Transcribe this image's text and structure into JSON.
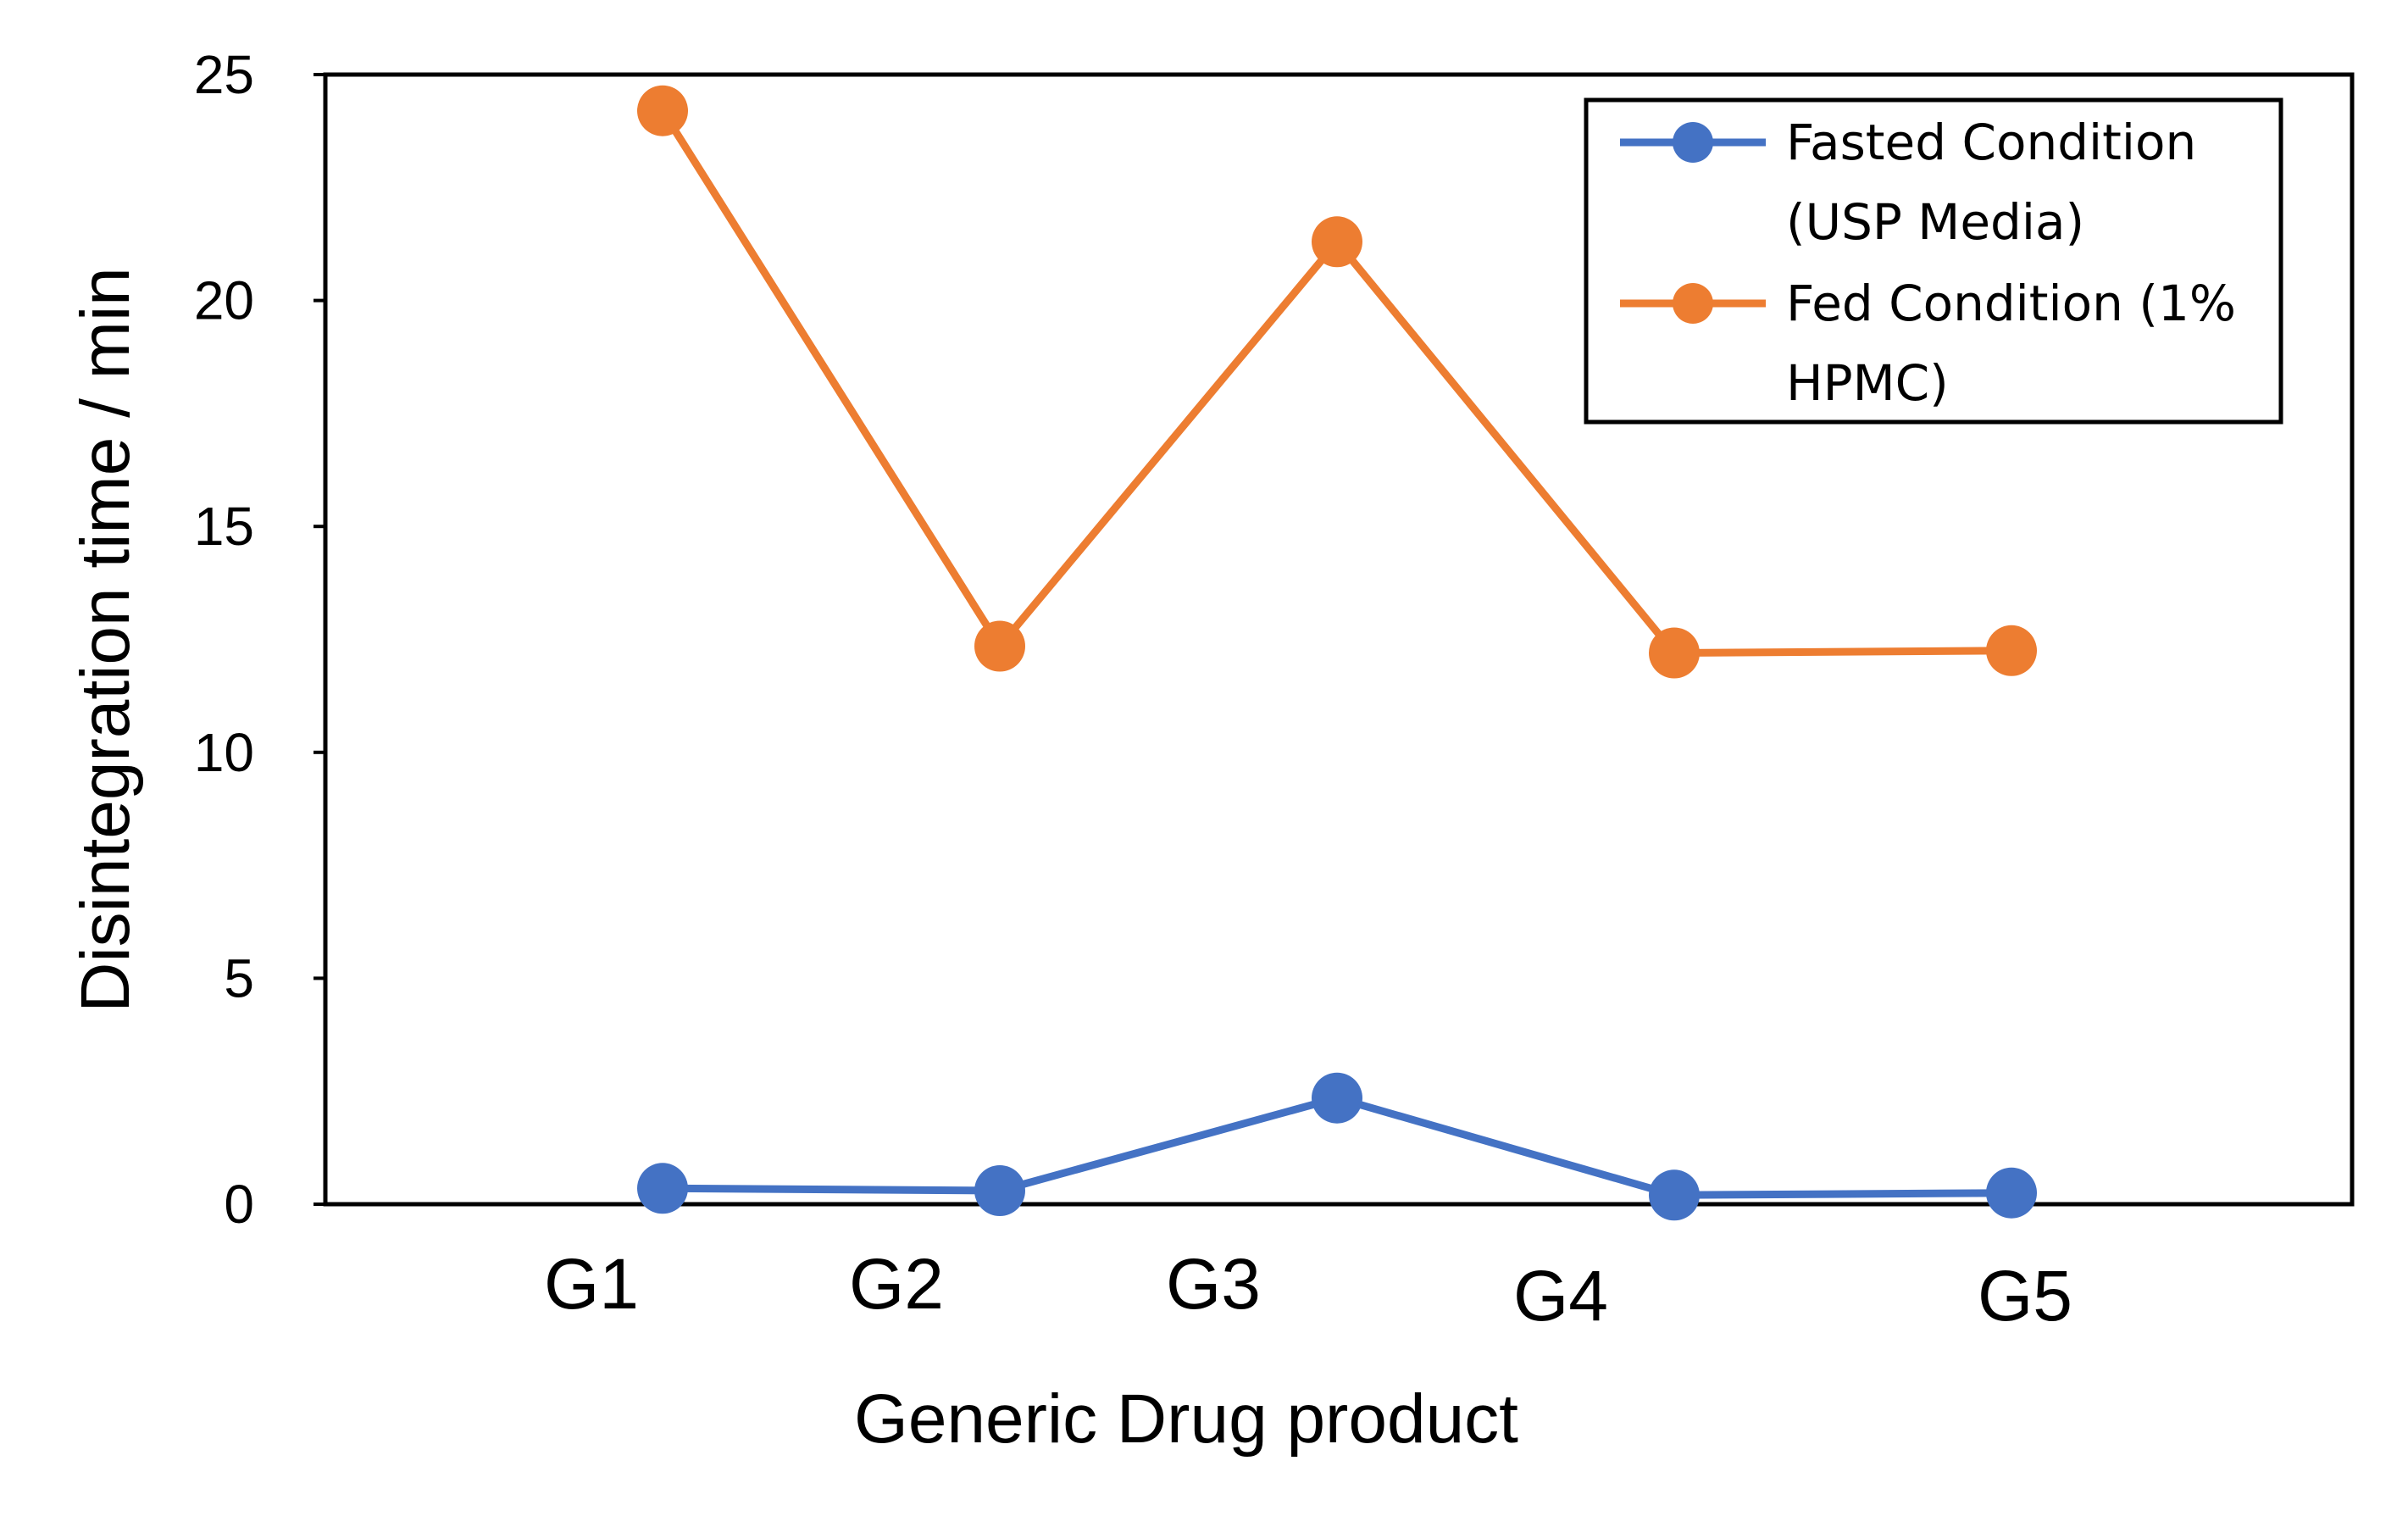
{
  "chart_data": {
    "type": "line",
    "categories": [
      "G1",
      "G2",
      "G3",
      "G4",
      "G5"
    ],
    "series": [
      {
        "name": "Fasted Condition (USP Media)",
        "legend_lines": [
          "Fasted Condition",
          "(USP Media)"
        ],
        "color": "#4472C4",
        "values": [
          0.35,
          0.3,
          2.35,
          0.2,
          0.25
        ]
      },
      {
        "name": "Fed Condition (1% HPMC)",
        "legend_lines": [
          "Fed Condition (1%",
          "HPMC)"
        ],
        "color": "#ED7D31",
        "values": [
          24.2,
          12.35,
          21.3,
          12.2,
          12.25
        ]
      }
    ],
    "xlabel": "Generic Drug product",
    "ylabel": "Disintegration time / min",
    "ylim": [
      0,
      25
    ],
    "yticks": [
      0,
      5,
      10,
      15,
      20,
      25
    ],
    "grid": false,
    "legend_position": "top-right"
  }
}
